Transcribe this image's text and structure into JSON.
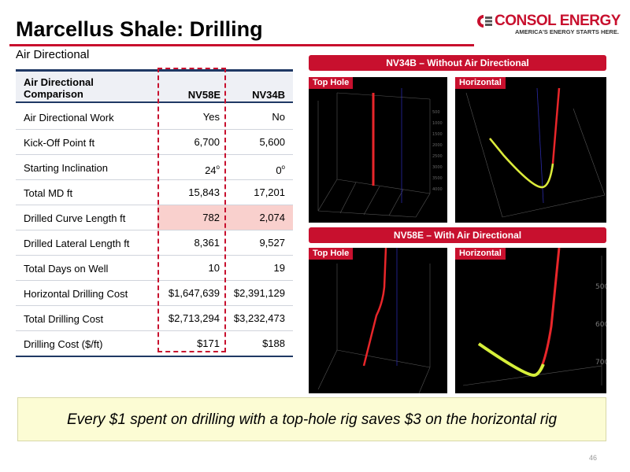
{
  "header": {
    "title": "Marcellus Shale: Drilling",
    "subtitle": "Air Directional",
    "logo_name": "CONSOL ENERGY",
    "logo_tagline": "AMERICA'S ENERGY STARTS HERE."
  },
  "table": {
    "header_label": "Air Directional Comparison",
    "col1": "NV58E",
    "col2": "NV34B",
    "rows": [
      {
        "label": "Air Directional Work",
        "v1": "Yes",
        "v2": "No"
      },
      {
        "label": "Kick-Off Point ft",
        "v1": "6,700",
        "v2": "5,600"
      },
      {
        "label": "Starting Inclination",
        "v1": "24",
        "v2": "0"
      },
      {
        "label": "Total MD ft",
        "v1": "15,843",
        "v2": "17,201"
      },
      {
        "label": "Drilled Curve Length ft",
        "v1": "782",
        "v2": "2,074"
      },
      {
        "label": "Drilled Lateral Length ft",
        "v1": "8,361",
        "v2": "9,527"
      },
      {
        "label": "Total Days on Well",
        "v1": "10",
        "v2": "19"
      },
      {
        "label": "Horizontal Drilling Cost",
        "v1": "$1,647,639",
        "v2": "$2,391,129"
      },
      {
        "label": "Total Drilling Cost",
        "v1": "$2,713,294",
        "v2": "$3,232,473"
      },
      {
        "label": "Drilling Cost ($/ft)",
        "v1": "$171",
        "v2": "$188"
      }
    ],
    "degree_mark": "o"
  },
  "panels": {
    "top_banner": "NV34B – Without Air Directional",
    "bottom_banner": "NV58E – With Air Directional",
    "top_hole_label": "Top Hole",
    "horizontal_label": "Horizontal",
    "axis_ticks_top_hole": [
      "500",
      "1000",
      "1500",
      "2000",
      "2500",
      "3000",
      "3500",
      "4000"
    ],
    "axis_ticks_horizontal": [
      "500",
      "600",
      "700"
    ]
  },
  "callout": "Every $1 spent on drilling with a top-hole rig saves $3 on the horizontal rig",
  "page_number": "46",
  "colors": {
    "accent": "#c8102e",
    "table_rule": "#1f3864",
    "highlight": "#f9d0cd",
    "callout_bg": "#fcfcd4",
    "well_path": "#e8262a",
    "lateral_path": "#d6ef3a"
  }
}
